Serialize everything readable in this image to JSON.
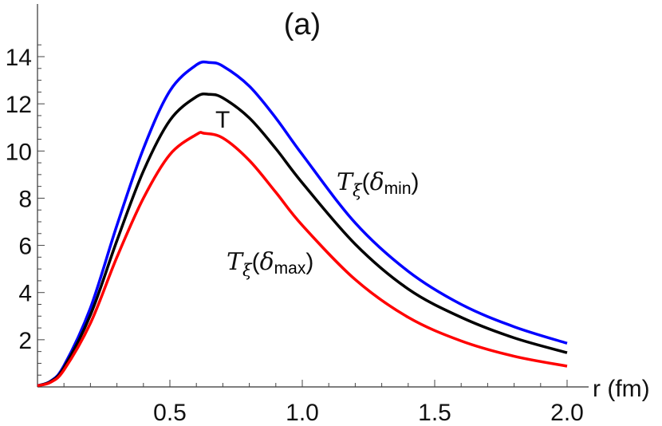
{
  "chart_data": {
    "type": "line",
    "title": "(a)",
    "xlabel": "r (fm)",
    "ylabel": "",
    "xlim": [
      0,
      2.0
    ],
    "ylim": [
      0,
      14.5
    ],
    "x_ticks": [
      "0.5",
      "1.0",
      "1.5",
      "2.0"
    ],
    "y_ticks": [
      "2",
      "4",
      "6",
      "8",
      "10",
      "12",
      "14"
    ],
    "x_minor_step": 0.1,
    "y_minor_step": 0.5,
    "grid": false,
    "series": [
      {
        "name": "T_ξ(δ_min)",
        "color": "#0000ff",
        "x": [
          0,
          0.05,
          0.1,
          0.2,
          0.3,
          0.4,
          0.5,
          0.6,
          0.65,
          0.7,
          0.8,
          0.9,
          1.0,
          1.2,
          1.4,
          1.6,
          1.8,
          2.0
        ],
        "y": [
          0.05,
          0.25,
          0.9,
          3.35,
          6.85,
          10.1,
          12.55,
          13.65,
          13.75,
          13.6,
          12.75,
          11.4,
          9.85,
          6.95,
          4.9,
          3.5,
          2.55,
          1.85
        ]
      },
      {
        "name": "T",
        "color": "#000000",
        "x": [
          0,
          0.05,
          0.1,
          0.2,
          0.3,
          0.4,
          0.5,
          0.6,
          0.65,
          0.7,
          0.8,
          0.9,
          1.0,
          1.2,
          1.4,
          1.6,
          1.8,
          2.0
        ],
        "y": [
          0.05,
          0.23,
          0.82,
          3.05,
          6.2,
          9.15,
          11.3,
          12.3,
          12.4,
          12.25,
          11.4,
          10.1,
          8.65,
          6.05,
          4.15,
          2.95,
          2.08,
          1.45
        ]
      },
      {
        "name": "T_ξ(δ_max)",
        "color": "#ff0000",
        "x": [
          0,
          0.05,
          0.1,
          0.2,
          0.3,
          0.4,
          0.5,
          0.6,
          0.63,
          0.7,
          0.8,
          0.9,
          1.0,
          1.2,
          1.4,
          1.6,
          1.8,
          2.0
        ],
        "y": [
          0.05,
          0.2,
          0.72,
          2.7,
          5.5,
          8.0,
          9.85,
          10.7,
          10.75,
          10.55,
          9.6,
          8.25,
          6.85,
          4.55,
          2.95,
          1.95,
          1.3,
          0.88
        ]
      }
    ],
    "annotations": {
      "curve_T": "T",
      "min_label": {
        "base": "T",
        "sub": "ξ",
        "open": "(",
        "delta": "δ",
        "delta_sub": "min",
        "close": ")"
      },
      "max_label": {
        "base": "T",
        "sub": "ξ",
        "open": "(",
        "delta": "δ",
        "delta_sub": "max",
        "close": ")"
      }
    }
  }
}
